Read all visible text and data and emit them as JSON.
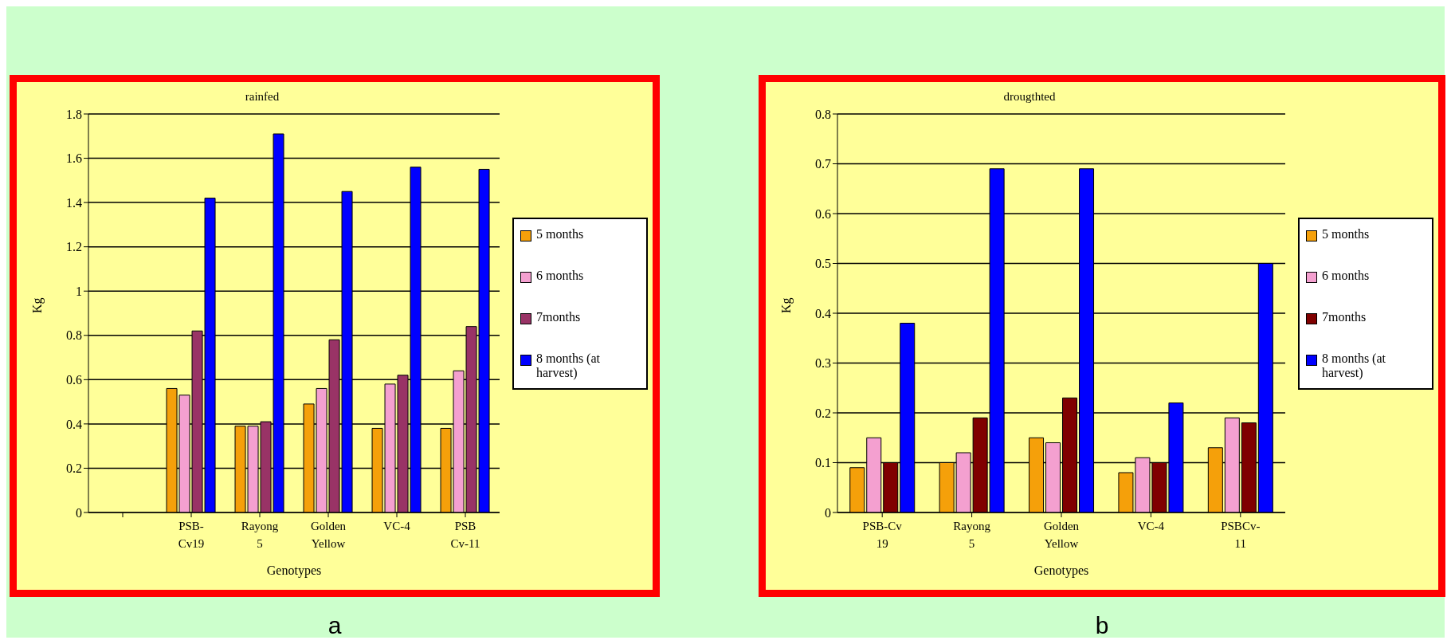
{
  "chart_data": [
    {
      "type": "bar",
      "title": "rainfed",
      "xlabel": "Genotypes",
      "ylabel": "Kg",
      "annotations": [
        "a"
      ],
      "categories": [
        null,
        "PSB- Cv19",
        "Rayong 5",
        "Golden Yellow",
        "VC-4",
        "PSB Cv-11"
      ],
      "series": [
        {
          "name": "5 months",
          "color": "#f5a00a",
          "values": [
            null,
            0.56,
            0.39,
            0.49,
            0.38,
            0.38
          ]
        },
        {
          "name": "6 months",
          "color": "#f4a0d0",
          "values": [
            null,
            0.53,
            0.39,
            0.56,
            0.58,
            0.64
          ]
        },
        {
          "name": "7months",
          "color": "#993366",
          "values": [
            null,
            0.82,
            0.41,
            0.78,
            0.62,
            0.84
          ]
        },
        {
          "name": "8 months (at harvest)",
          "color": "#0000ff",
          "values": [
            null,
            1.42,
            1.71,
            1.45,
            1.56,
            1.55
          ]
        }
      ],
      "ylim": [
        0,
        1.8
      ],
      "yticks": [
        0,
        0.2,
        0.4,
        0.6,
        0.8,
        1,
        1.2,
        1.4,
        1.6,
        1.8
      ],
      "grid": "y",
      "legend": "right"
    },
    {
      "type": "bar",
      "title": "drougthted",
      "xlabel": "Genotypes",
      "ylabel": "Kg",
      "annotations": [
        "b"
      ],
      "categories": [
        "PSB-Cv 19",
        "Rayong 5",
        "Golden Yellow",
        "VC-4",
        "PSBCv- 11"
      ],
      "series": [
        {
          "name": "5 months",
          "color": "#f5a00a",
          "values": [
            0.09,
            0.1,
            0.15,
            0.08,
            0.13
          ]
        },
        {
          "name": "6 months",
          "color": "#f4a0d0",
          "values": [
            0.15,
            0.12,
            0.14,
            0.11,
            0.19
          ]
        },
        {
          "name": "7months",
          "color": "#800000",
          "values": [
            0.1,
            0.19,
            0.23,
            0.1,
            0.18
          ]
        },
        {
          "name": "8 months (at harvest)",
          "color": "#0000ff",
          "values": [
            0.38,
            0.69,
            0.69,
            0.22,
            0.5
          ]
        }
      ],
      "ylim": [
        0,
        0.8
      ],
      "yticks": [
        0,
        0.1,
        0.2,
        0.3,
        0.4,
        0.5,
        0.6,
        0.7,
        0.8
      ],
      "grid": "y",
      "legend": "right"
    }
  ]
}
